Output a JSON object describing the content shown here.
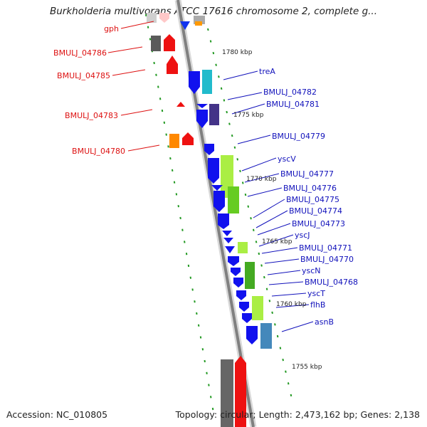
{
  "title": "Burkholderia multivorans ATCC 17616 chromosome 2, complete g...",
  "footer": {
    "accession": "Accession: NC_010805",
    "topology": "Topology: circular; Length: 2,473,162 bp; Genes: 2,138"
  },
  "kbp_labels": [
    "1780 kbp",
    "1775 kbp",
    "1770 kbp",
    "1765 kbp",
    "1760 kbp",
    "1755 kbp"
  ],
  "left_genes": [
    "gph",
    "BMULJ_04786",
    "BMULJ_04785",
    "BMULJ_04783",
    "BMULJ_04780"
  ],
  "right_genes": [
    "treA",
    "BMULJ_04782",
    "BMULJ_04781",
    "BMULJ_04779",
    "yscV",
    "BMULJ_04777",
    "BMULJ_04776",
    "BMULJ_04775",
    "BMULJ_04774",
    "BMULJ_04773",
    "yscJ",
    "BMULJ_04771",
    "BMULJ_04770",
    "yscN",
    "BMULJ_04768",
    "yscT",
    "flhB",
    "asnB"
  ],
  "colors": {
    "reverse_strand_label": "#dd1111",
    "forward_strand_label": "#1111bb",
    "backbone": "#888888",
    "tick": "#22aa22"
  }
}
